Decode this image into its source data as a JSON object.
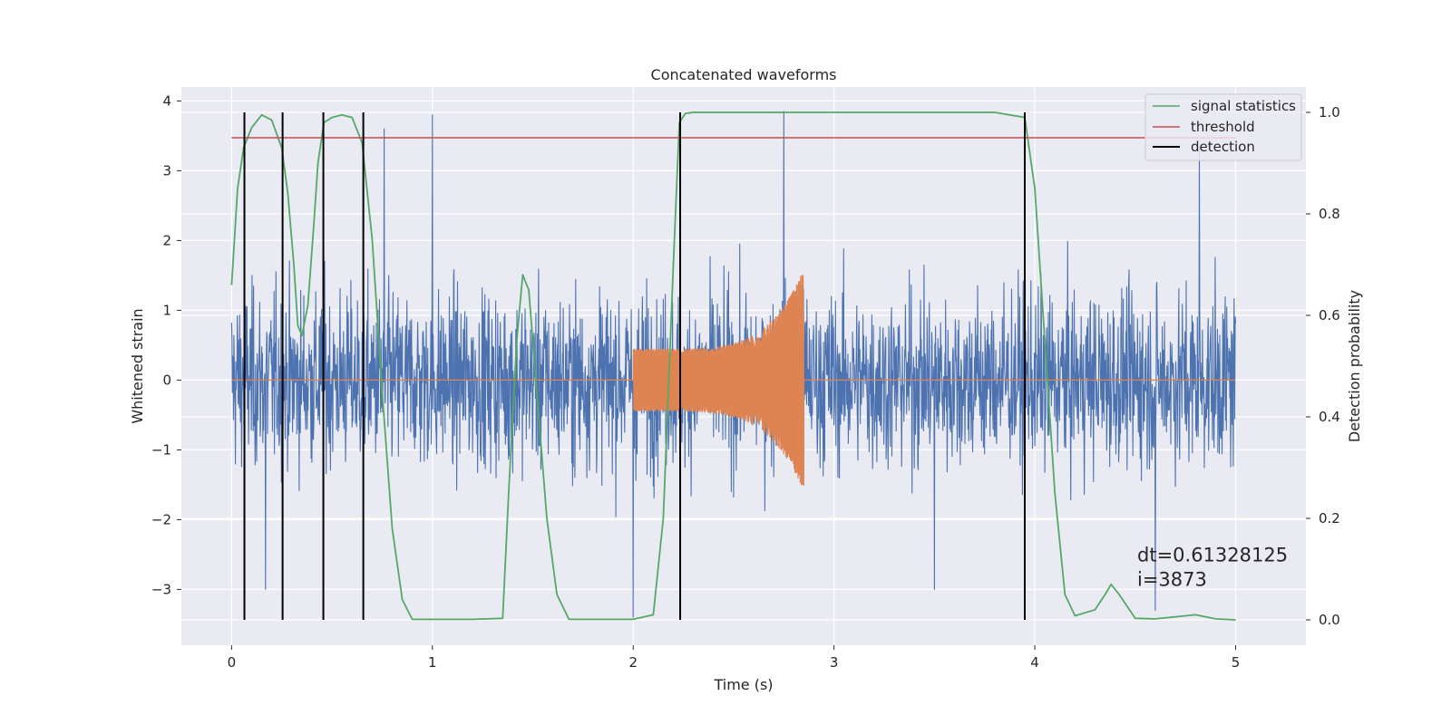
{
  "chart_data": {
    "type": "line",
    "title": "Concatenated waveforms",
    "xlabel": "Time (s)",
    "ylabel": "Whitened strain",
    "y2label": "Detection probability",
    "xlim": [
      -0.25,
      5.35
    ],
    "ylim": [
      -3.8,
      4.2
    ],
    "y2lim": [
      -0.05,
      1.05
    ],
    "xticks": [
      0,
      1,
      2,
      3,
      4,
      5
    ],
    "xtick_labels": [
      "0",
      "1",
      "2",
      "3",
      "4",
      "5"
    ],
    "yticks": [
      -3,
      -2,
      -1,
      0,
      1,
      2,
      3,
      4
    ],
    "ytick_labels": [
      "−3",
      "−2",
      "−1",
      "0",
      "1",
      "2",
      "3",
      "4"
    ],
    "y2ticks": [
      0.0,
      0.2,
      0.4,
      0.6,
      0.8,
      1.0
    ],
    "y2tick_labels": [
      "0.0",
      "0.2",
      "0.4",
      "0.6",
      "0.8",
      "1.0"
    ],
    "grid": true,
    "legend_position": "top-right",
    "colors": {
      "strain": "#4c72b0",
      "template": "#dd8452",
      "signal": "#55a868",
      "threshold": "#c44e52",
      "detection": "#000000",
      "background": "#eaeaf2",
      "grid": "#ffffff"
    },
    "series": [
      {
        "name": "signal statistics",
        "axis": "right",
        "color": "#55a868",
        "x": [
          0.0,
          0.03,
          0.06,
          0.1,
          0.15,
          0.2,
          0.25,
          0.28,
          0.31,
          0.33,
          0.35,
          0.38,
          0.41,
          0.43,
          0.46,
          0.5,
          0.55,
          0.6,
          0.65,
          0.7,
          0.75,
          0.8,
          0.85,
          0.9,
          1.0,
          1.2,
          1.35,
          1.38,
          1.42,
          1.45,
          1.48,
          1.52,
          1.57,
          1.62,
          1.68,
          1.8,
          2.0,
          2.1,
          2.15,
          2.2,
          2.23,
          2.26,
          2.3,
          2.5,
          3.0,
          3.5,
          3.8,
          3.95,
          4.0,
          4.05,
          4.1,
          4.15,
          4.2,
          4.3,
          4.35,
          4.38,
          4.42,
          4.5,
          4.6,
          4.7,
          4.8,
          4.9,
          5.0
        ],
        "values": [
          0.66,
          0.85,
          0.93,
          0.97,
          0.995,
          0.985,
          0.93,
          0.84,
          0.7,
          0.58,
          0.56,
          0.62,
          0.78,
          0.9,
          0.98,
          0.99,
          0.995,
          0.99,
          0.94,
          0.75,
          0.45,
          0.18,
          0.04,
          0.001,
          0.001,
          0.001,
          0.003,
          0.25,
          0.55,
          0.68,
          0.65,
          0.45,
          0.2,
          0.05,
          0.001,
          0.001,
          0.001,
          0.01,
          0.2,
          0.7,
          0.98,
          0.998,
          1.0,
          1.0,
          1.0,
          1.0,
          1.0,
          0.99,
          0.85,
          0.55,
          0.25,
          0.05,
          0.008,
          0.02,
          0.05,
          0.07,
          0.05,
          0.003,
          0.002,
          0.006,
          0.01,
          0.002,
          0.0
        ]
      },
      {
        "name": "threshold",
        "axis": "right",
        "color": "#c44e52",
        "x": [
          0,
          5
        ],
        "values": [
          0.95,
          0.95
        ]
      },
      {
        "name": "detection",
        "axis": "right",
        "color": "#000000",
        "type": "vlines",
        "x": [
          0.064,
          0.254,
          0.457,
          0.656,
          2.234,
          3.95
        ],
        "range": [
          0,
          1
        ]
      }
    ],
    "noise_trace": {
      "description": "whitened strain, dense noise between about −2 and 2 with spikes near ±3.8",
      "axis": "left",
      "color": "#4c72b0",
      "x_range": [
        0,
        5
      ],
      "envelope": [
        -2.0,
        2.0
      ],
      "spikes": [
        {
          "x": 1.0,
          "y": 3.8
        },
        {
          "x": 2.75,
          "y": 3.85
        },
        {
          "x": 0.76,
          "y": 3.6
        },
        {
          "x": 4.82,
          "y": 3.35
        },
        {
          "x": 2.0,
          "y": -3.4
        },
        {
          "x": 0.17,
          "y": -3.0
        },
        {
          "x": 4.6,
          "y": -3.3
        },
        {
          "x": 3.5,
          "y": -3.0
        }
      ]
    },
    "chirp_trace": {
      "description": "injected waveform, zero outside 2.0–2.85 s, chirp growing to about ±1.6",
      "axis": "left",
      "color": "#dd8452",
      "start": 2.0,
      "end": 2.85,
      "amplitude_start": 0.45,
      "amplitude_end": 1.6
    },
    "annotations": [
      {
        "text": "dt=0.61328125",
        "x": 4.51,
        "y": -2.6
      },
      {
        "text": " i=3873",
        "x": 4.51,
        "y": -2.95
      }
    ]
  }
}
